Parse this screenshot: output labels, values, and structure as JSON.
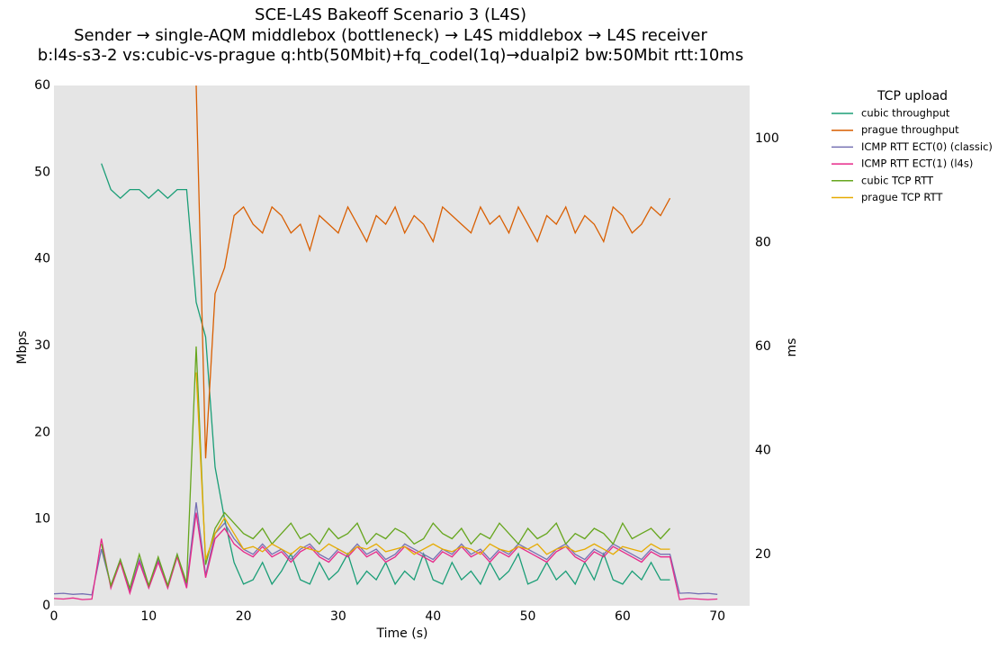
{
  "chart_data": {
    "type": "line",
    "title": "SCE-L4S Bakeoff Scenario 3 (L4S)",
    "subtitle": [
      "Sender → single-AQM middlebox (bottleneck) → L4S middlebox → L4S receiver",
      "b:l4s-s3-2 vs:cubic-vs-prague q:htb(50Mbit)+fq_codel(1q)→dualpi2 bw:50Mbit rtt:10ms"
    ],
    "x_label": "Time (s)",
    "y_label": "Mbps",
    "y2_label": "ms",
    "legend_title": "TCP upload",
    "legend": "outside-right",
    "grid": false,
    "xlim": [
      0,
      73.4
    ],
    "xticks": [
      0,
      10,
      20,
      30,
      40,
      50,
      60,
      70
    ],
    "ylim": [
      0,
      60
    ],
    "yticks": [
      0,
      10,
      20,
      30,
      40,
      50,
      60
    ],
    "y2lim": [
      10.1,
      110.2
    ],
    "y2ticks": [
      20,
      40,
      60,
      80,
      100
    ],
    "x": [
      0,
      1,
      2,
      3,
      4,
      5,
      6,
      7,
      8,
      9,
      10,
      11,
      12,
      13,
      14,
      15,
      16,
      17,
      18,
      19,
      20,
      21,
      22,
      23,
      24,
      25,
      26,
      27,
      28,
      29,
      30,
      31,
      32,
      33,
      34,
      35,
      36,
      37,
      38,
      39,
      40,
      41,
      42,
      43,
      44,
      45,
      46,
      47,
      48,
      49,
      50,
      51,
      52,
      53,
      54,
      55,
      56,
      57,
      58,
      59,
      60,
      61,
      62,
      63,
      64,
      65,
      66,
      67,
      68,
      69,
      70
    ],
    "series": [
      {
        "name": "cubic throughput",
        "color": "#1b9e77",
        "axis": "y",
        "values": [
          null,
          null,
          null,
          null,
          null,
          51,
          48,
          47,
          48,
          48,
          47,
          48,
          47,
          48,
          48,
          35,
          31,
          16,
          10,
          5,
          2.5,
          3,
          5,
          2.5,
          4,
          6,
          3,
          2.5,
          5,
          3,
          4,
          6,
          2.5,
          4,
          3,
          5,
          2.5,
          4,
          3,
          6,
          3,
          2.5,
          5,
          3,
          4,
          2.5,
          5,
          3,
          4,
          6,
          2.5,
          3,
          5,
          3,
          4,
          2.5,
          5,
          3,
          6,
          3,
          2.5,
          4,
          3,
          5,
          3,
          3,
          null,
          null,
          null,
          null,
          null
        ]
      },
      {
        "name": "prague throughput",
        "color": "#d95f02",
        "axis": "y",
        "values": [
          null,
          null,
          null,
          null,
          null,
          null,
          null,
          null,
          null,
          null,
          null,
          null,
          null,
          null,
          null,
          60,
          17,
          36,
          39,
          45,
          46,
          44,
          43,
          46,
          45,
          43,
          44,
          41,
          45,
          44,
          43,
          46,
          44,
          42,
          45,
          44,
          46,
          43,
          45,
          44,
          42,
          46,
          45,
          44,
          43,
          46,
          44,
          45,
          43,
          46,
          44,
          42,
          45,
          44,
          46,
          43,
          45,
          44,
          42,
          46,
          45,
          43,
          44,
          46,
          45,
          47,
          null,
          null,
          null,
          null,
          null
        ]
      },
      {
        "name": "ICMP RTT ECT(0) (classic)",
        "color": "#7570b3",
        "axis": "y2",
        "values": [
          12.4,
          12.5,
          12.3,
          12.4,
          12.2,
          21,
          14,
          19,
          13,
          19,
          14,
          19,
          14,
          20,
          14,
          30,
          16,
          24,
          26,
          23,
          21,
          20,
          22,
          20,
          21,
          19,
          21,
          22,
          20,
          19,
          21,
          20,
          22,
          20,
          21,
          19,
          20,
          22,
          21,
          20,
          19,
          21,
          20,
          22,
          20,
          21,
          19,
          21,
          20,
          22,
          21,
          20,
          19,
          21,
          22,
          20,
          19,
          21,
          20,
          22,
          21,
          20,
          19,
          21,
          20,
          20,
          12.5,
          12.6,
          12.4,
          12.5,
          12.3
        ]
      },
      {
        "name": "ICMP RTT ECT(1) (l4s)",
        "color": "#e7298a",
        "axis": "y2",
        "values": [
          11.5,
          11.4,
          11.6,
          11.3,
          11.4,
          23,
          13.5,
          18.5,
          12.5,
          18.5,
          13.5,
          18.5,
          13.5,
          19.5,
          13.5,
          28,
          15.5,
          23,
          25,
          22,
          20.5,
          19.5,
          21.5,
          19.5,
          20.5,
          18.5,
          20.5,
          21.5,
          19.5,
          18.5,
          20.5,
          19.5,
          21.5,
          19.5,
          20.5,
          18.5,
          19.5,
          21.5,
          20.5,
          19.5,
          18.5,
          20.5,
          19.5,
          21.5,
          19.5,
          20.5,
          18.5,
          20.5,
          19.5,
          21.5,
          20.5,
          19.5,
          18.5,
          20.5,
          21.5,
          19.5,
          18.5,
          20.5,
          19.5,
          21.5,
          20.5,
          19.5,
          18.5,
          20.5,
          19.5,
          19.5,
          11.3,
          11.5,
          11.4,
          11.3,
          11.4
        ]
      },
      {
        "name": "cubic TCP RTT",
        "color": "#66a61e",
        "axis": "y2",
        "values": [
          null,
          null,
          null,
          null,
          null,
          22,
          14,
          19,
          13.5,
          20,
          14,
          19.5,
          14,
          20,
          14.5,
          60,
          18,
          25,
          28,
          26,
          24,
          23,
          25,
          22,
          24,
          26,
          23,
          24,
          22,
          25,
          23,
          24,
          26,
          22,
          24,
          23,
          25,
          24,
          22,
          23,
          26,
          24,
          23,
          25,
          22,
          24,
          23,
          26,
          24,
          22,
          25,
          23,
          24,
          26,
          22,
          24,
          23,
          25,
          24,
          22,
          26,
          23,
          24,
          25,
          23,
          25,
          null,
          null,
          null,
          null,
          null
        ]
      },
      {
        "name": "prague TCP RTT",
        "color": "#e6ab02",
        "axis": "y2",
        "values": [
          null,
          null,
          null,
          null,
          null,
          null,
          null,
          null,
          null,
          null,
          null,
          null,
          null,
          null,
          null,
          55,
          19,
          24,
          27,
          24,
          21,
          21.5,
          20.5,
          22,
          21,
          20,
          21.5,
          21,
          20.5,
          22,
          21,
          20,
          21.5,
          21,
          22,
          20.5,
          21,
          21.5,
          20,
          21,
          22,
          21,
          20.5,
          21.5,
          21,
          20,
          22,
          21,
          20.5,
          21.5,
          21,
          22,
          20,
          21,
          21.5,
          20.5,
          21,
          22,
          21,
          20,
          21.5,
          21,
          20.5,
          22,
          21,
          21,
          null,
          null,
          null,
          null,
          null
        ]
      }
    ]
  }
}
